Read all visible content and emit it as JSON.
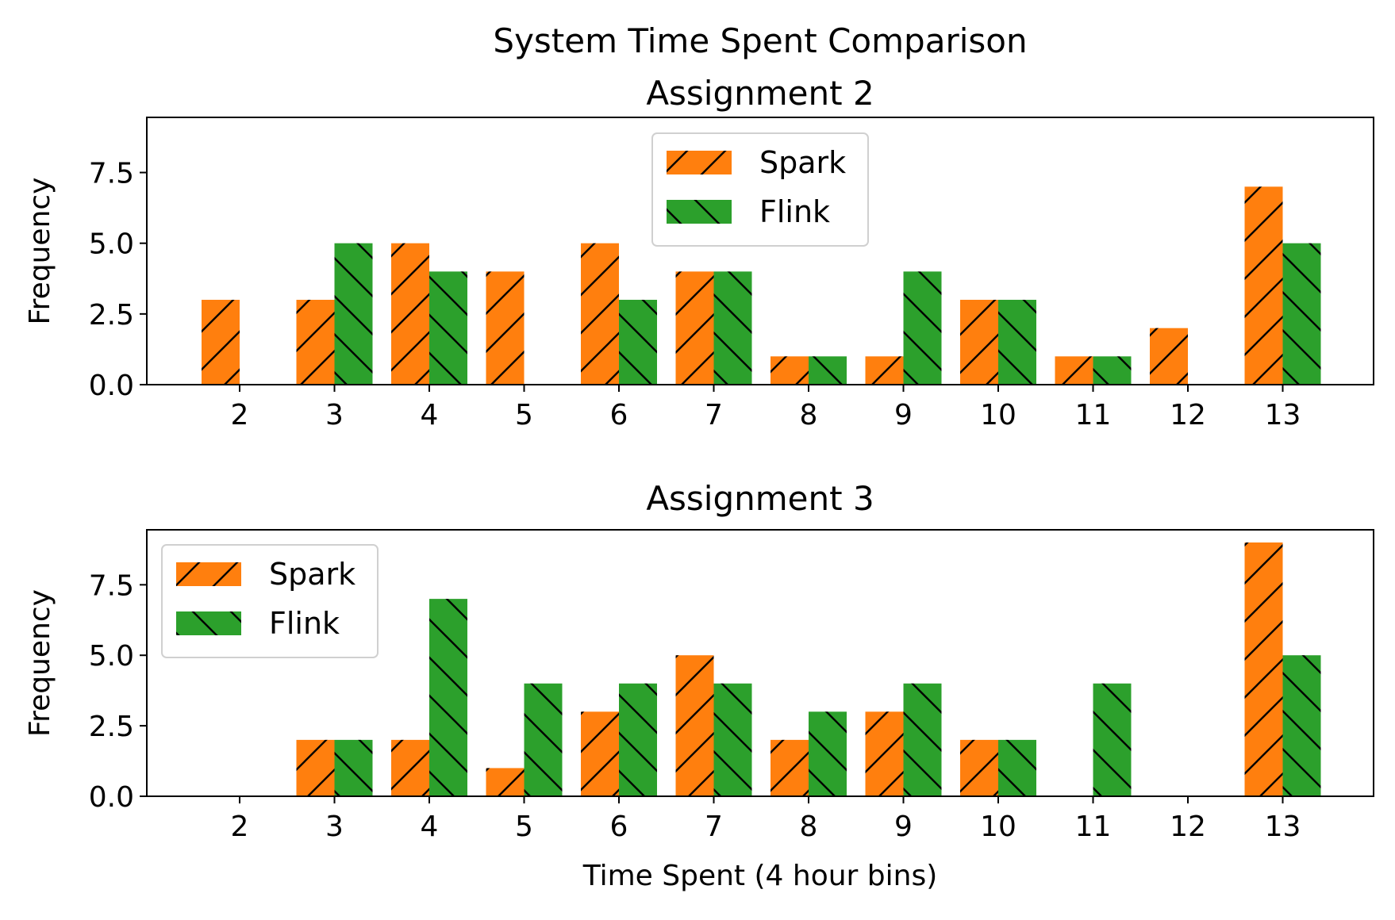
{
  "figure": {
    "suptitle": "System Time Spent Comparison"
  },
  "colors": {
    "spark": "#ff7f0e",
    "flink": "#2ca02c"
  },
  "chart_data": [
    {
      "type": "bar",
      "title": "Assignment 2",
      "xlabel": "",
      "ylabel": "Frequency",
      "categories": [
        "2",
        "3",
        "4",
        "5",
        "6",
        "7",
        "8",
        "9",
        "10",
        "11",
        "12",
        "13"
      ],
      "yticks": [
        "0.0",
        "2.5",
        "5.0",
        "7.5"
      ],
      "ylim": [
        0,
        9.45
      ],
      "legend": "upper center",
      "series": [
        {
          "name": "Spark",
          "hatch": "/",
          "values": [
            3,
            3,
            5,
            4,
            5,
            4,
            1,
            1,
            3,
            1,
            2,
            7
          ]
        },
        {
          "name": "Flink",
          "hatch": "\\",
          "values": [
            0,
            5,
            4,
            0,
            3,
            4,
            1,
            4,
            3,
            1,
            0,
            5
          ]
        }
      ]
    },
    {
      "type": "bar",
      "title": "Assignment 3",
      "xlabel": "Time Spent (4 hour bins)",
      "ylabel": "Frequency",
      "categories": [
        "2",
        "3",
        "4",
        "5",
        "6",
        "7",
        "8",
        "9",
        "10",
        "11",
        "12",
        "13"
      ],
      "yticks": [
        "0.0",
        "2.5",
        "5.0",
        "7.5"
      ],
      "ylim": [
        0,
        9.45
      ],
      "legend": "upper left",
      "series": [
        {
          "name": "Spark",
          "hatch": "/",
          "values": [
            0,
            2,
            2,
            1,
            3,
            5,
            2,
            3,
            2,
            0,
            0,
            9
          ]
        },
        {
          "name": "Flink",
          "hatch": "\\",
          "values": [
            0,
            2,
            7,
            4,
            4,
            4,
            3,
            4,
            2,
            4,
            0,
            5
          ]
        }
      ]
    }
  ]
}
